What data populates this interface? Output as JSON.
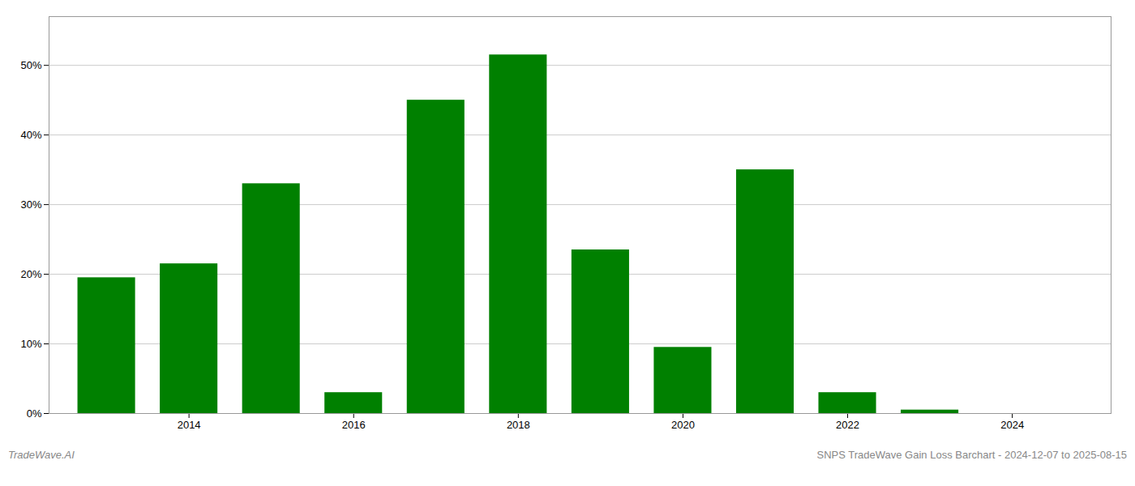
{
  "chart_data": {
    "type": "bar",
    "x": [
      2013,
      2014,
      2015,
      2016,
      2017,
      2018,
      2019,
      2020,
      2021,
      2022,
      2023,
      2024
    ],
    "values": [
      19.5,
      21.5,
      33.0,
      3.0,
      45.0,
      51.5,
      23.5,
      9.5,
      35.0,
      3.0,
      0.5,
      0.0
    ],
    "color": "#008000",
    "xlim": [
      2012.3,
      2025.2
    ],
    "xticks": [
      2014,
      2016,
      2018,
      2020,
      2022,
      2024
    ],
    "ylim": [
      0,
      57
    ],
    "yticks": [
      {
        "value": 0,
        "label": "0%"
      },
      {
        "value": 10,
        "label": "10%"
      },
      {
        "value": 20,
        "label": "20%"
      },
      {
        "value": 30,
        "label": "30%"
      },
      {
        "value": 40,
        "label": "40%"
      },
      {
        "value": 50,
        "label": "50%"
      }
    ],
    "grid": true,
    "annotations": [
      "TradeWave.AI",
      "SNPS TradeWave Gain Loss Barchart - 2024-12-07 to 2025-08-15"
    ]
  }
}
